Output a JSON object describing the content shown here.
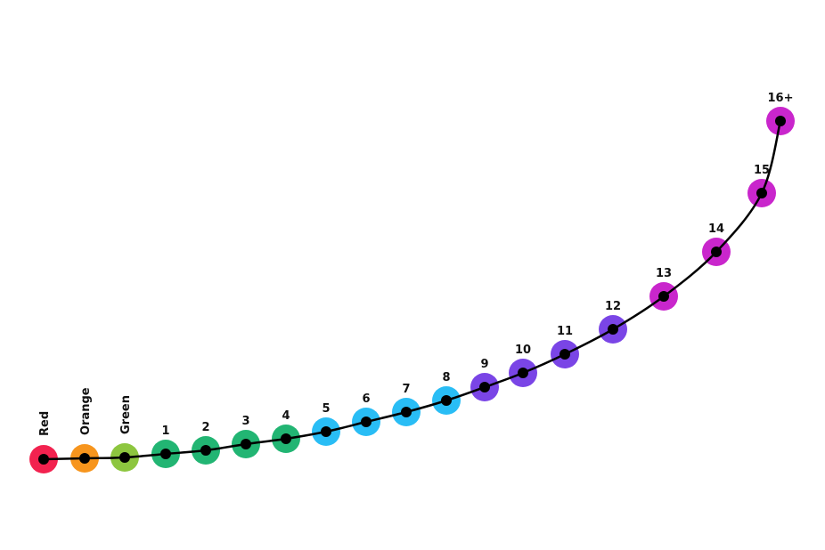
{
  "colors": {
    "red": "#f2224f",
    "orange": "#f7951d",
    "light_green": "#8dc63f",
    "green": "#22b573",
    "cyan": "#29bdf5",
    "purple": "#7a45e6",
    "magenta": "#c926cc",
    "line": "#000000"
  },
  "steps": [
    {
      "label": "Red",
      "color": "red"
    },
    {
      "label": "Orange",
      "color": "orange"
    },
    {
      "label": "Green",
      "color": "light_green"
    },
    {
      "label": "1",
      "color": "green"
    },
    {
      "label": "2",
      "color": "green"
    },
    {
      "label": "3",
      "color": "green"
    },
    {
      "label": "4",
      "color": "green"
    },
    {
      "label": "5",
      "color": "cyan"
    },
    {
      "label": "6",
      "color": "cyan"
    },
    {
      "label": "7",
      "color": "cyan"
    },
    {
      "label": "8",
      "color": "cyan"
    },
    {
      "label": "9",
      "color": "purple"
    },
    {
      "label": "10",
      "color": "purple"
    },
    {
      "label": "11",
      "color": "purple"
    },
    {
      "label": "12",
      "color": "purple"
    },
    {
      "label": "13",
      "color": "magenta"
    },
    {
      "label": "14",
      "color": "magenta"
    },
    {
      "label": "15",
      "color": "magenta"
    },
    {
      "label": "16+",
      "color": "magenta"
    }
  ]
}
